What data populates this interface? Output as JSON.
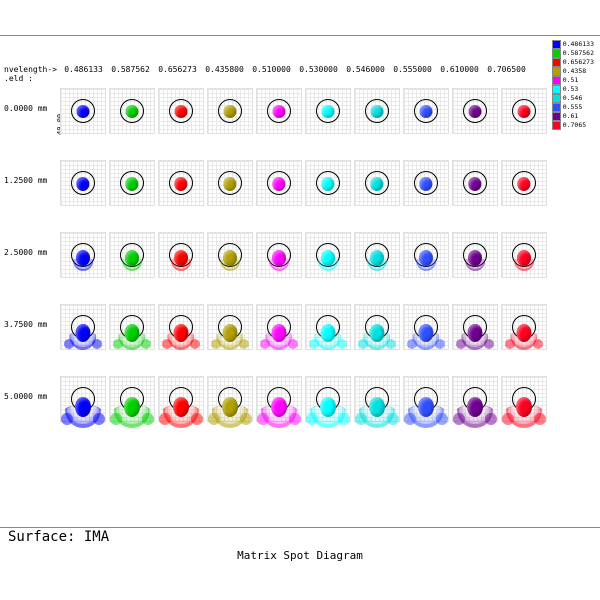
{
  "title": "Matrix Spot Diagram",
  "surface_label": "Surface: IMA",
  "header_labels": {
    "line1": "nvelength->",
    "line2": ".eld     :"
  },
  "ylabel": "40.00",
  "wavelengths": [
    "0.486133",
    "0.587562",
    "0.656273",
    "0.435800",
    "0.510000",
    "0.530000",
    "0.546000",
    "0.555000",
    "0.610000",
    "0.706500"
  ],
  "fields": [
    "0.0000 mm",
    "1.2500 mm",
    "2.5000 mm",
    "3.7500 mm",
    "5.0000 mm"
  ],
  "colors": [
    "#0000ff",
    "#00d000",
    "#ff0000",
    "#b0a000",
    "#ff00ff",
    "#00ffff",
    "#00e0e0",
    "#3050ff",
    "#700090",
    "#ff0020"
  ],
  "legend": [
    {
      "color": "#0000ff",
      "label": "0.486133"
    },
    {
      "color": "#00d000",
      "label": "0.587562"
    },
    {
      "color": "#ff0000",
      "label": "0.656273"
    },
    {
      "color": "#b0a000",
      "label": "0.4358"
    },
    {
      "color": "#ff00ff",
      "label": "0.51"
    },
    {
      "color": "#00ffff",
      "label": "0.53"
    },
    {
      "color": "#00e0e0",
      "label": "0.546"
    },
    {
      "color": "#3050ff",
      "label": "0.555"
    },
    {
      "color": "#700090",
      "label": "0.61"
    },
    {
      "color": "#ff0020",
      "label": "0.7065"
    }
  ],
  "spot_style": {
    "row_spread": [
      0,
      0.12,
      0.35,
      0.7,
      1.0
    ],
    "spot_base_size": 13,
    "airy_diameter": 22
  }
}
